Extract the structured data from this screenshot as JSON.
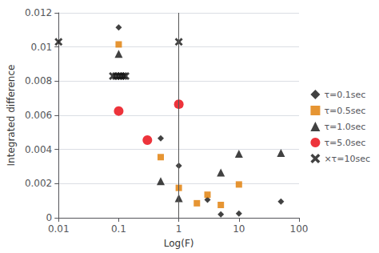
{
  "chart_data": {
    "type": "scatter",
    "xlabel": "Log(F)",
    "ylabel": "Integrated difference",
    "log": "x",
    "xlim": [
      0.01,
      100
    ],
    "xticks": [
      0.01,
      0.1,
      1,
      10,
      100
    ],
    "ylim": [
      0,
      0.012
    ],
    "yticks": [
      0,
      0.002,
      0.004,
      0.006,
      0.008,
      0.01,
      0.012
    ],
    "grid": "y",
    "legend": "right",
    "vline_x": 1.0,
    "series": [
      {
        "name": "τ=0.1sec",
        "marker": "diamond",
        "color": "#111111",
        "x": [
          0.1,
          0.5,
          1.0,
          3.0,
          5.0,
          10.0,
          50.0
        ],
        "values": [
          0.01115,
          0.00465,
          0.00305,
          0.00105,
          0.0002,
          0.00025,
          0.00095
        ]
      },
      {
        "name": "τ=0.5sec",
        "marker": "square",
        "color": "#e07b00",
        "x": [
          0.1,
          0.5,
          1.0,
          2.0,
          3.0,
          5.0,
          10.0
        ],
        "values": [
          0.01015,
          0.00355,
          0.00175,
          0.00085,
          0.00135,
          0.00075,
          0.00195
        ]
      },
      {
        "name": "τ=1.0sec",
        "marker": "triangle",
        "color": "#111111",
        "x": [
          0.1,
          0.5,
          1.0,
          5.0,
          10.0,
          50.0
        ],
        "values": [
          0.0096,
          0.00215,
          0.00115,
          0.00265,
          0.00375,
          0.0038
        ]
      },
      {
        "name": "τ=5.0sec",
        "marker": "circle",
        "color": "#e8000a",
        "x": [
          0.1,
          0.3,
          1.0
        ],
        "values": [
          0.00625,
          0.00455,
          0.00665
        ]
      },
      {
        "name": "×τ=10sec",
        "marker": "x",
        "color": "#111111",
        "x": [
          0.01,
          0.08,
          0.09,
          0.1,
          0.11,
          0.12,
          0.13,
          1.0
        ],
        "values": [
          0.0103,
          0.0083,
          0.0083,
          0.0083,
          0.0083,
          0.0083,
          0.0083,
          0.0103
        ]
      }
    ]
  }
}
